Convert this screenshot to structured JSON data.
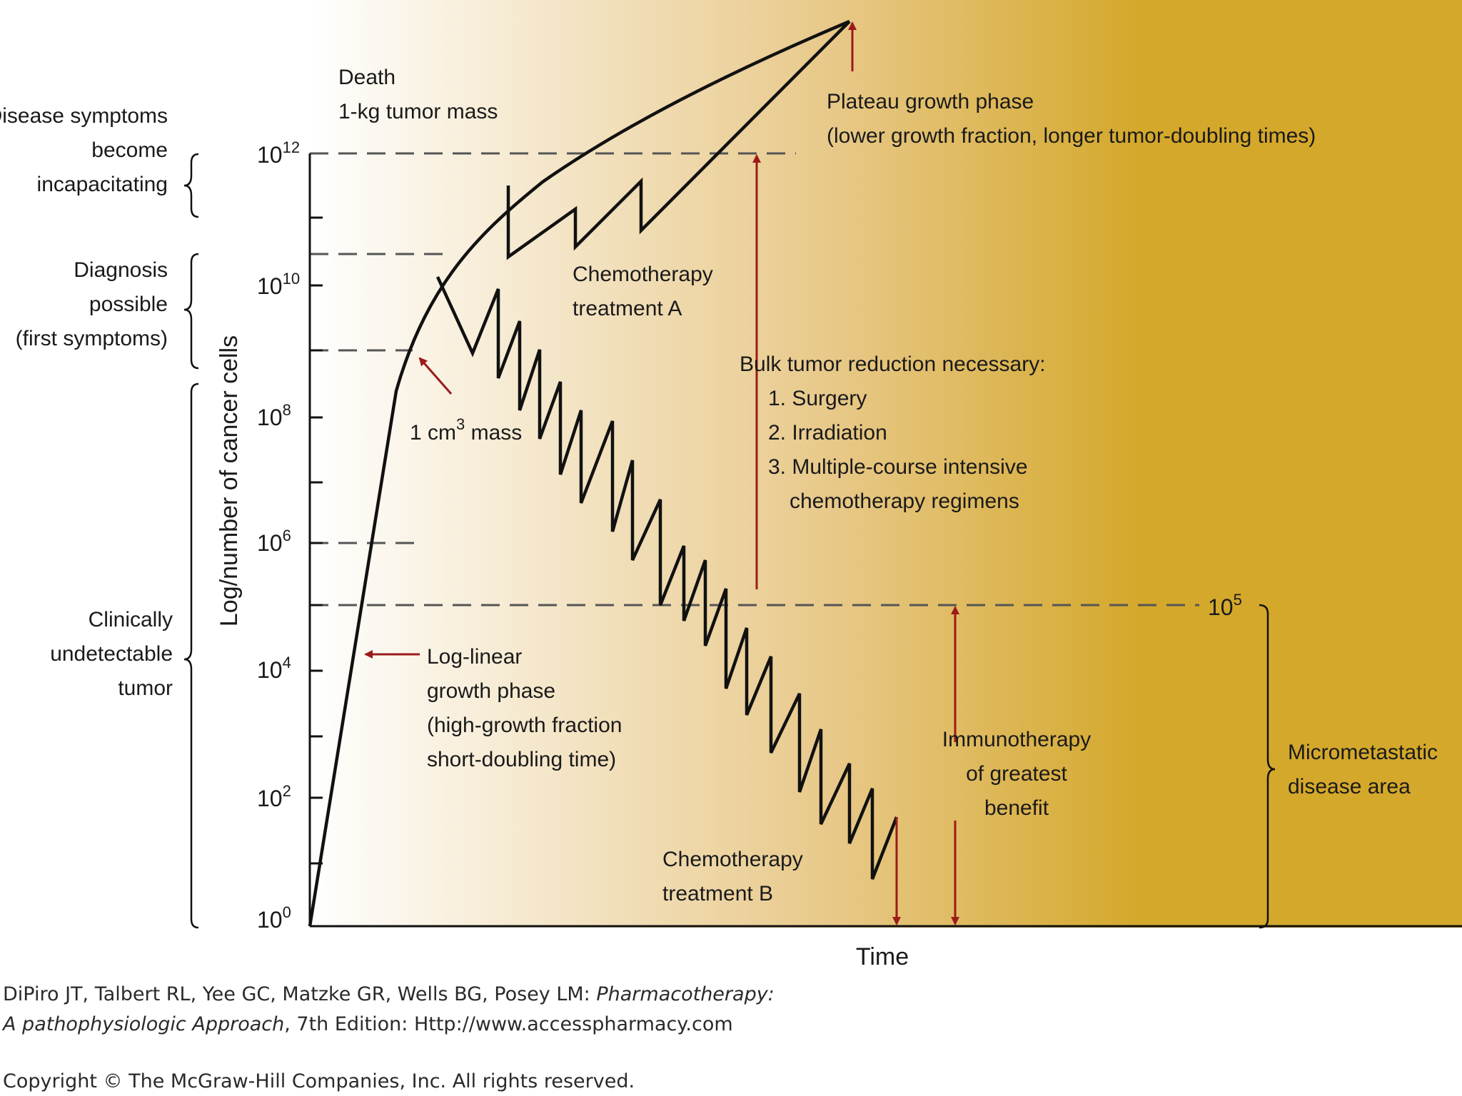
{
  "colors": {
    "gradient_start": "#ffffff",
    "gradient_mid": "#e8c98a",
    "gradient_end": "#d4a82b",
    "line": "#111111",
    "dash": "#555555",
    "arrow": "#9b1b1b"
  },
  "axes": {
    "y_label": "Log/number of cancer cells",
    "x_label": "Time",
    "y_ticks": [
      {
        "base": "10",
        "exp": "0"
      },
      {
        "base": "10",
        "exp": "2"
      },
      {
        "base": "10",
        "exp": "4"
      },
      {
        "base": "10",
        "exp": "6"
      },
      {
        "base": "10",
        "exp": "8"
      },
      {
        "base": "10",
        "exp": "10"
      },
      {
        "base": "10",
        "exp": "12"
      }
    ],
    "threshold_label": {
      "base": "10",
      "exp": "5"
    }
  },
  "left_brackets": {
    "incapacitating": [
      "Disease symptoms",
      "become",
      "incapacitating"
    ],
    "diagnosis": [
      "Diagnosis",
      "possible",
      "(first symptoms)"
    ],
    "undetectable": [
      "Clinically",
      "undetectable",
      "tumor"
    ]
  },
  "annotations": {
    "death": [
      "Death",
      "1-kg tumor mass"
    ],
    "plateau": [
      "Plateau growth phase",
      "(lower growth fraction, longer tumor-doubling times)"
    ],
    "chemo_a": [
      "Chemotherapy",
      "treatment A"
    ],
    "one_cm_prefix": "1 cm",
    "one_cm_exp": "3",
    "one_cm_suffix": " mass",
    "bulk": [
      "Bulk tumor reduction necessary:",
      "1. Surgery",
      "2. Irradiation",
      "3. Multiple-course intensive",
      "chemotherapy regimens"
    ],
    "log_linear": [
      "Log-linear",
      "growth phase",
      "(high-growth fraction",
      "short-doubling time)"
    ],
    "immuno": [
      "Immunotherapy",
      "of greatest",
      "benefit"
    ],
    "chemo_b": [
      "Chemotherapy",
      "treatment B"
    ],
    "micrometastatic": [
      "Micrometastatic",
      "disease area"
    ]
  },
  "credit": {
    "line1_plain": "DiPiro JT, Talbert RL, Yee GC, Matzke GR, Wells BG, Posey LM: ",
    "line1_italic": "Pharmacotherapy:",
    "line2_italic": "A pathophysiologic Approach",
    "line2_plain": ", 7th Edition: Http://www.accesspharmacy.com",
    "copyright": "Copyright © The McGraw-Hill Companies, Inc. All rights reserved."
  }
}
